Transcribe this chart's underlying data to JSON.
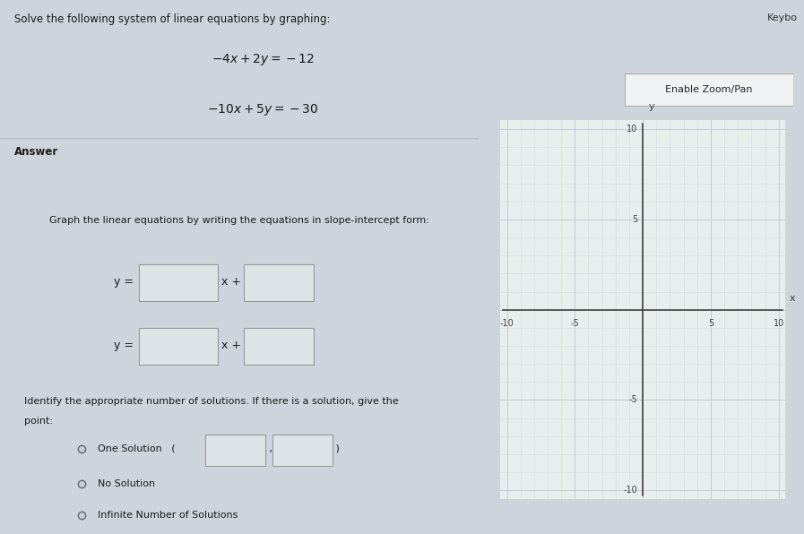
{
  "bg_top": "#c8cfd8",
  "bg_bottom": "#cdd4dc",
  "left_bg": "#cdd4dc",
  "title_bg": "#c5ccd4",
  "answer_bg": "#c8cfd8",
  "graph_bg": "#dde4e8",
  "graph_inner_bg": "#e8eeec",
  "title_text": "Solve the following system of linear equations by graphing:",
  "eq1": "$-4x + 2y = -12$",
  "eq2": "$-10x + 5y = -30$",
  "answer_label": "Answer",
  "keybo_label": "Keybo",
  "enable_zoom_label": "Enable Zoom/Pan",
  "graph_instruction": "Graph the linear equations by writing the equations in slope-intercept form:",
  "identify_text1": "Identify the appropriate number of solutions. If there is a solution, give the",
  "identify_text2": "point:",
  "one_solution_label": "One Solution",
  "no_solution_label": "No Solution",
  "infinite_label": "Infinite Number of Solutions",
  "grid_color": "#c0ccd4",
  "minor_grid_color": "#d0dce4",
  "axis_color": "#404040",
  "tick_label_color": "#404040",
  "box_face": "#dde4e8",
  "box_edge": "#999999",
  "axis_range": [
    -10,
    10
  ],
  "axis_ticks_shown": [
    -10,
    -5,
    5,
    10
  ],
  "fig_width": 8.97,
  "fig_height": 5.96,
  "dpi": 100
}
